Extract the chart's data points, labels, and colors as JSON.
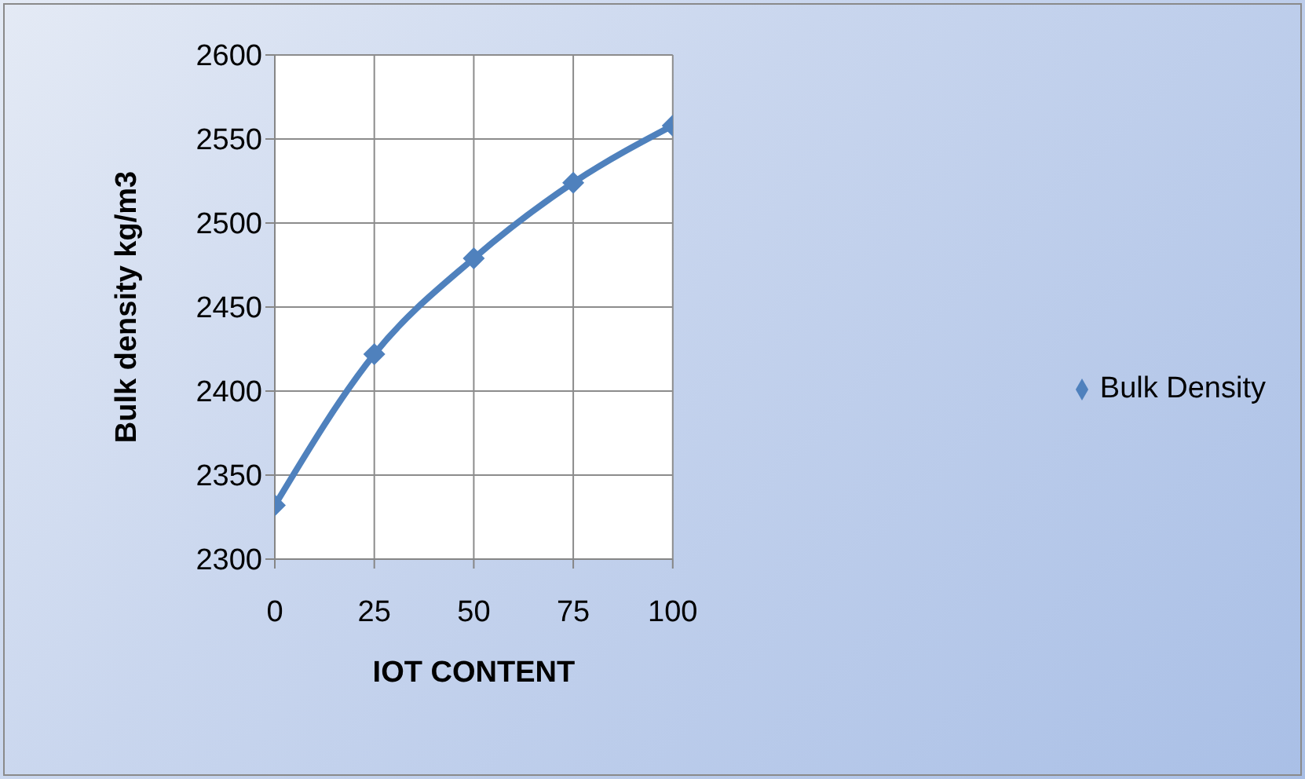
{
  "chart_data": {
    "type": "line",
    "xlabel": "IOT CONTENT",
    "ylabel": "Bulk density  kg/m3",
    "x": [
      0,
      25,
      50,
      75,
      100
    ],
    "series": [
      {
        "name": "Bulk Density",
        "color": "#4f81bd",
        "values": [
          2332,
          2422,
          2479,
          2524,
          2558
        ]
      }
    ],
    "xlim": [
      0,
      100
    ],
    "xticks": [
      0,
      25,
      50,
      75,
      100
    ],
    "ylim": [
      2300,
      2600
    ],
    "yticks": [
      2300,
      2350,
      2400,
      2450,
      2500,
      2550,
      2600
    ],
    "grid": true,
    "legend": "right",
    "marker": "diamond",
    "line_style": "solid"
  }
}
